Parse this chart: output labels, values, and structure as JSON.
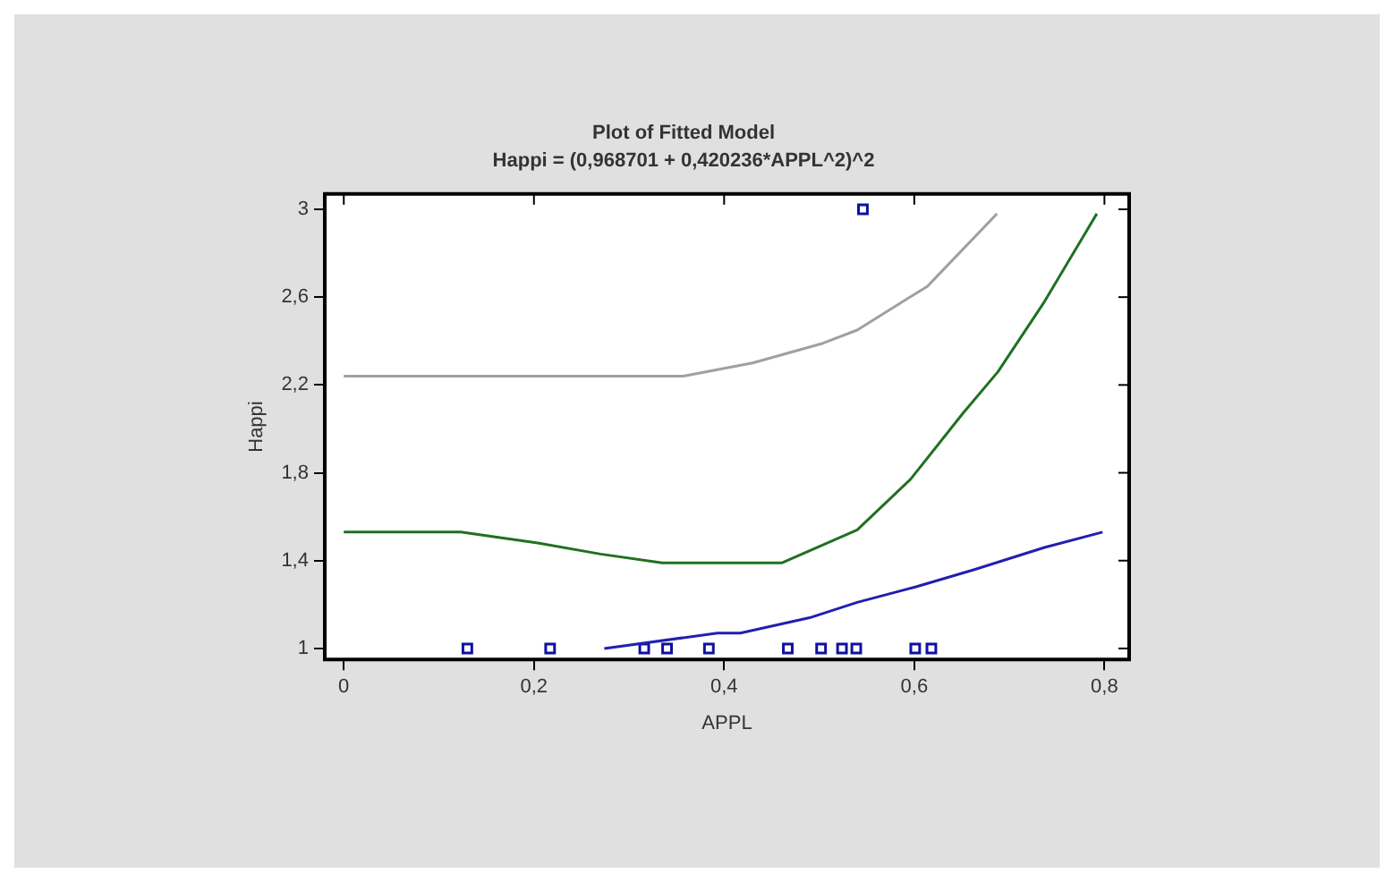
{
  "chart_data": {
    "type": "scatter",
    "title": "Plot of Fitted Model",
    "subtitle": "Happi = (0,968701 + 0,420236*APPL^2)^2",
    "xlabel": "APPL",
    "ylabel": "Happi",
    "xlim": [
      -0.02,
      0.826
    ],
    "ylim": [
      0.95,
      3.07
    ],
    "xticks": [
      {
        "value": 0,
        "label": "0"
      },
      {
        "value": 0.2,
        "label": "0,2"
      },
      {
        "value": 0.4,
        "label": "0,4"
      },
      {
        "value": 0.6,
        "label": "0,6"
      },
      {
        "value": 0.8,
        "label": "0,8"
      }
    ],
    "yticks": [
      {
        "value": 1,
        "label": "1"
      },
      {
        "value": 1.4,
        "label": "1,4"
      },
      {
        "value": 1.8,
        "label": "1,8"
      },
      {
        "value": 2.2,
        "label": "2,2"
      },
      {
        "value": 2.6,
        "label": "2,6"
      },
      {
        "value": 3,
        "label": "3"
      }
    ],
    "grid": false,
    "legend": false,
    "series": [
      {
        "type": "line",
        "color": "#a0a0a0",
        "marker": "none",
        "x": [
          0,
          0.357,
          0.43,
          0.504,
          0.54,
          0.614,
          0.687
        ],
        "values": [
          2.24,
          2.24,
          2.3,
          2.39,
          2.45,
          2.65,
          2.98
        ]
      },
      {
        "type": "line",
        "color": "#207020",
        "marker": "none",
        "x": [
          0,
          0.123,
          0.204,
          0.27,
          0.335,
          0.461,
          0.54,
          0.596,
          0.651,
          0.688,
          0.737,
          0.792
        ],
        "values": [
          1.53,
          1.53,
          1.48,
          1.43,
          1.39,
          1.39,
          1.54,
          1.77,
          2.07,
          2.26,
          2.58,
          2.98
        ]
      },
      {
        "type": "line",
        "color": "#2020b0",
        "marker": "none",
        "x": [
          0.274,
          0.393,
          0.417,
          0.49,
          0.54,
          0.601,
          0.664,
          0.737,
          0.798
        ],
        "values": [
          1.0,
          1.07,
          1.07,
          1.14,
          1.21,
          1.28,
          1.36,
          1.46,
          1.53
        ]
      },
      {
        "type": "scatter",
        "color": "#1010a0",
        "marker": "square",
        "x": [
          0.13,
          0.217,
          0.316,
          0.34,
          0.384,
          0.467,
          0.502,
          0.524,
          0.539,
          0.546,
          0.601,
          0.618
        ],
        "values": [
          1,
          1,
          1,
          1,
          1,
          1,
          1,
          1,
          1,
          3,
          1,
          1
        ]
      }
    ]
  }
}
